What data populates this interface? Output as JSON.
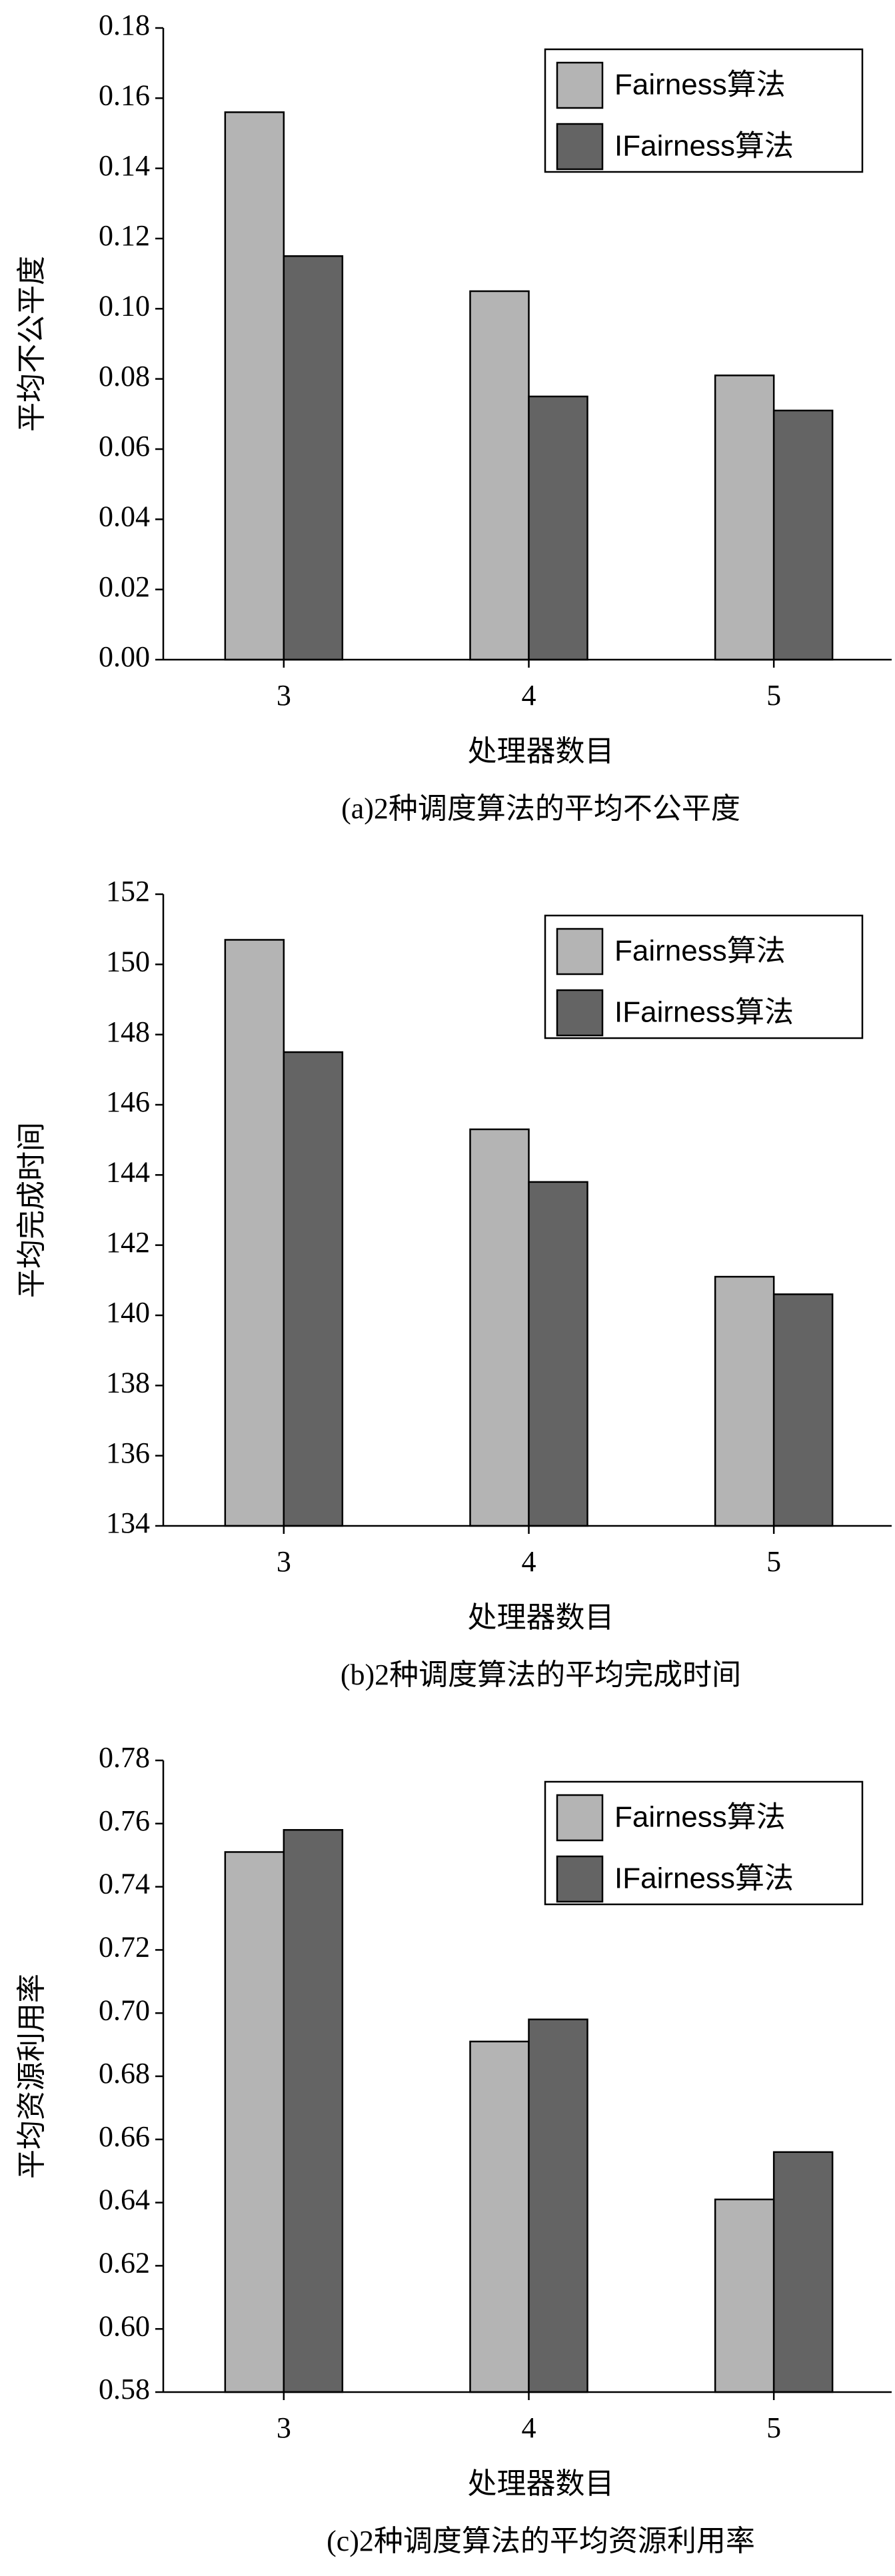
{
  "chart_data": [
    {
      "type": "bar",
      "title": "(a)2种调度算法的平均不公平度",
      "x_label": "处理器数目",
      "y_label": "平均不公平度",
      "categories": [
        "3",
        "4",
        "5"
      ],
      "series": [
        {
          "name": "Fairness算法",
          "color": "#b4b4b4",
          "values": [
            0.156,
            0.105,
            0.081
          ]
        },
        {
          "name": "IFairness算法",
          "color": "#646464",
          "values": [
            0.115,
            0.075,
            0.071
          ]
        }
      ],
      "ylim": [
        0,
        0.18
      ],
      "yticks": [
        {
          "value": 0,
          "label": "0.00"
        },
        0.02,
        0.04,
        0.06,
        0.08,
        {
          "value": 0.1,
          "label": "0.10"
        },
        0.12,
        0.14,
        0.16,
        0.18
      ],
      "legend": "upper right"
    },
    {
      "type": "bar",
      "title": "(b)2种调度算法的平均完成时间",
      "x_label": "处理器数目",
      "y_label": "平均完成时间",
      "categories": [
        "3",
        "4",
        "5"
      ],
      "series": [
        {
          "name": "Fairness算法",
          "color": "#b4b4b4",
          "values": [
            150.7,
            145.3,
            141.1
          ]
        },
        {
          "name": "IFairness算法",
          "color": "#646464",
          "values": [
            147.5,
            143.8,
            140.6
          ]
        }
      ],
      "ylim": [
        134,
        152
      ],
      "yticks": [
        134,
        136,
        138,
        140,
        142,
        144,
        146,
        148,
        150,
        152
      ],
      "legend": "upper right"
    },
    {
      "type": "bar",
      "title": "(c)2种调度算法的平均资源利用率",
      "x_label": "处理器数目",
      "y_label": "平均资源利用率",
      "categories": [
        "3",
        "4",
        "5"
      ],
      "series": [
        {
          "name": "Fairness算法",
          "color": "#b4b4b4",
          "values": [
            0.751,
            0.691,
            0.641
          ]
        },
        {
          "name": "IFairness算法",
          "color": "#646464",
          "values": [
            0.758,
            0.698,
            0.656
          ]
        }
      ],
      "ylim": [
        0.58,
        0.78
      ],
      "yticks": [
        0.58,
        {
          "value": 0.6,
          "label": "0.60"
        },
        0.62,
        0.64,
        0.66,
        0.68,
        {
          "value": 0.7,
          "label": "0.70"
        },
        0.72,
        0.74,
        0.76,
        0.78
      ],
      "legend": "upper right"
    }
  ]
}
